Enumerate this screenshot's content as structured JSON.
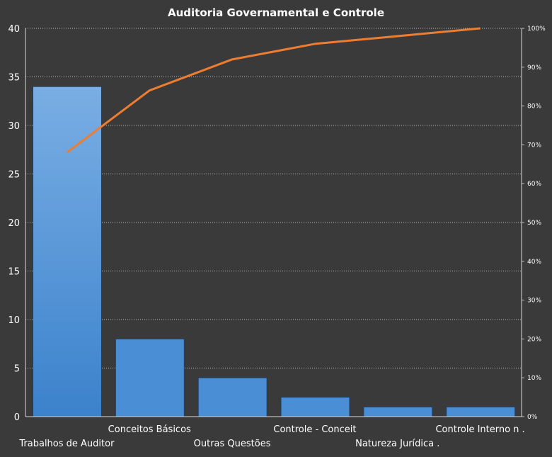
{
  "chart_data": {
    "type": "bar",
    "title": "Auditoria  Governamental  e Controle",
    "categories": [
      "Trabalhos de Auditor",
      "Conceitos Básicos",
      "Outras Questões",
      "Controle  - Conceit",
      "Natureza Jurídica .",
      "Controle Interno n ."
    ],
    "values": [
      34,
      8,
      4,
      2,
      1,
      1
    ],
    "cumulative_percent": [
      68,
      84,
      92,
      96,
      98,
      100
    ],
    "ylim": [
      0,
      40
    ],
    "y_ticks": [
      "0",
      "5",
      "10",
      "15",
      "20",
      "25",
      "30",
      "35",
      "40"
    ],
    "y2lim": [
      0,
      100
    ],
    "y2_ticks": [
      "0%",
      "10%",
      "20%",
      "30%",
      "40%",
      "50%",
      "60%",
      "70%",
      "80%",
      "90%",
      "100%"
    ],
    "grid": true,
    "colors": {
      "background": "#3a3a3a",
      "bar": "#4a8fd6",
      "bar_border": "#1f3f66",
      "line": "#ed7d31",
      "text": "#ffffff",
      "grid": "#bfbfbf"
    }
  }
}
